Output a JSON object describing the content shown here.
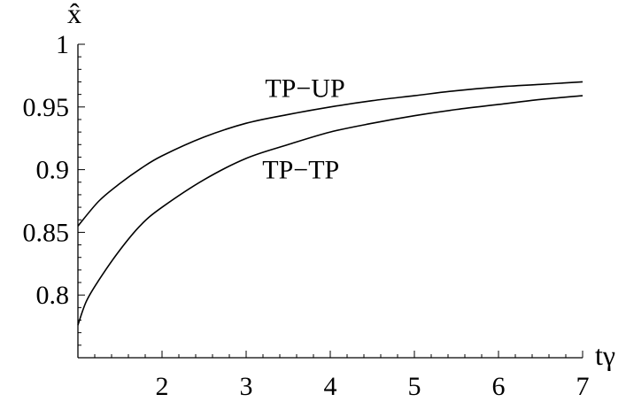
{
  "chart_data": {
    "type": "line",
    "title": "",
    "xlabel": "tγ",
    "ylabel": "x̂",
    "xlim": [
      1,
      7
    ],
    "ylim": [
      0.75,
      1.0
    ],
    "x_ticks": [
      2,
      3,
      4,
      5,
      6,
      7
    ],
    "y_ticks": [
      0.8,
      0.85,
      0.9,
      0.95,
      1
    ],
    "y_tick_labels": [
      "0.8",
      "0.85",
      "0.9",
      "0.95",
      "1"
    ],
    "x_tick_labels": [
      "2",
      "3",
      "4",
      "5",
      "6",
      "7"
    ],
    "grid": false,
    "legend": "none",
    "series": [
      {
        "name": "TP−UP",
        "x": [
          1.0,
          1.25,
          1.5,
          1.75,
          2.0,
          2.5,
          3.0,
          3.5,
          4.0,
          4.5,
          5.0,
          5.5,
          6.0,
          6.5,
          7.0
        ],
        "y": [
          0.855,
          0.875,
          0.889,
          0.901,
          0.911,
          0.926,
          0.937,
          0.944,
          0.95,
          0.955,
          0.959,
          0.963,
          0.966,
          0.968,
          0.97
        ]
      },
      {
        "name": "TP−TP",
        "x": [
          1.0,
          1.1,
          1.25,
          1.5,
          1.75,
          2.0,
          2.5,
          3.0,
          3.5,
          4.0,
          4.5,
          5.0,
          5.5,
          6.0,
          6.5,
          7.0
        ],
        "y": [
          0.776,
          0.795,
          0.812,
          0.836,
          0.856,
          0.87,
          0.892,
          0.909,
          0.92,
          0.93,
          0.937,
          0.943,
          0.948,
          0.952,
          0.956,
          0.959
        ]
      }
    ],
    "annotations": [
      {
        "text": "TP−UP",
        "x": 3.7,
        "y": 0.958
      },
      {
        "text": "TP−TP",
        "x": 3.65,
        "y": 0.893
      }
    ]
  }
}
